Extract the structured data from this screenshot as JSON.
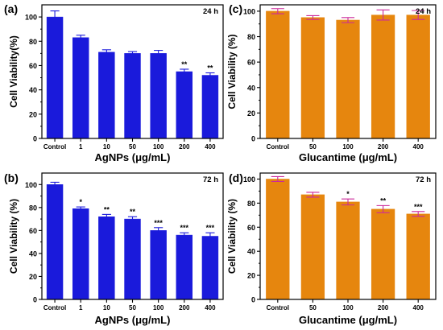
{
  "chart_data": [
    {
      "type": "bar",
      "panel_label": "(a)",
      "time_label": "24 h",
      "categories": [
        "Control",
        "1",
        "10",
        "50",
        "100",
        "200",
        "400"
      ],
      "values": [
        100,
        83,
        71,
        70,
        70,
        55,
        52
      ],
      "errors": [
        5,
        2,
        2,
        1.5,
        2.5,
        2,
        2
      ],
      "significance": [
        "",
        "",
        "",
        "",
        "",
        "**",
        "**"
      ],
      "xlabel": "AgNPs (μg/mL)",
      "ylabel": "Cell Viability(%)",
      "ylim": [
        0,
        110
      ],
      "yticks": [
        0,
        20,
        40,
        60,
        80,
        100
      ],
      "bar_color": "#1a1adb",
      "error_color": "#1a1adb"
    },
    {
      "type": "bar",
      "panel_label": "(c)",
      "time_label": "24 h",
      "categories": [
        "Control",
        "50",
        "100",
        "200",
        "400"
      ],
      "values": [
        100,
        95,
        93,
        97,
        97
      ],
      "errors": [
        2,
        1.5,
        2,
        4,
        3.5
      ],
      "significance": [
        "",
        "",
        "",
        "",
        ""
      ],
      "xlabel": "Glucantime (μg/mL)",
      "ylabel": "Cell Viability (%)",
      "ylim": [
        0,
        105
      ],
      "yticks": [
        0,
        20,
        40,
        60,
        80,
        100
      ],
      "bar_color": "#e6860e",
      "error_color": "#cc2a9a"
    },
    {
      "type": "bar",
      "panel_label": "(b)",
      "time_label": "72 h",
      "categories": [
        "Control",
        "1",
        "10",
        "50",
        "100",
        "200",
        "400"
      ],
      "values": [
        100,
        79,
        72,
        70,
        60,
        56,
        55
      ],
      "errors": [
        2,
        1.5,
        2,
        2,
        2.5,
        2,
        3
      ],
      "significance": [
        "",
        "*",
        "**",
        "**",
        "***",
        "***",
        "***"
      ],
      "xlabel": "AgNPs (μg/mL)",
      "ylabel": "Cell Viability (%)",
      "ylim": [
        0,
        110
      ],
      "yticks": [
        0,
        20,
        40,
        60,
        80,
        100
      ],
      "bar_color": "#1a1adb",
      "error_color": "#1a1adb"
    },
    {
      "type": "bar",
      "panel_label": "(d)",
      "time_label": "72 h",
      "categories": [
        "Control",
        "50",
        "100",
        "200",
        "400"
      ],
      "values": [
        100,
        87,
        81,
        75,
        71
      ],
      "errors": [
        2,
        2,
        2.5,
        3,
        2
      ],
      "significance": [
        "",
        "",
        "*",
        "**",
        "***"
      ],
      "xlabel": "Glucantime (μg/mL)",
      "ylabel": "Cell Viability (%)",
      "ylim": [
        0,
        105
      ],
      "yticks": [
        0,
        20,
        40,
        60,
        80,
        100
      ],
      "bar_color": "#e6860e",
      "error_color": "#cc2a9a"
    }
  ]
}
